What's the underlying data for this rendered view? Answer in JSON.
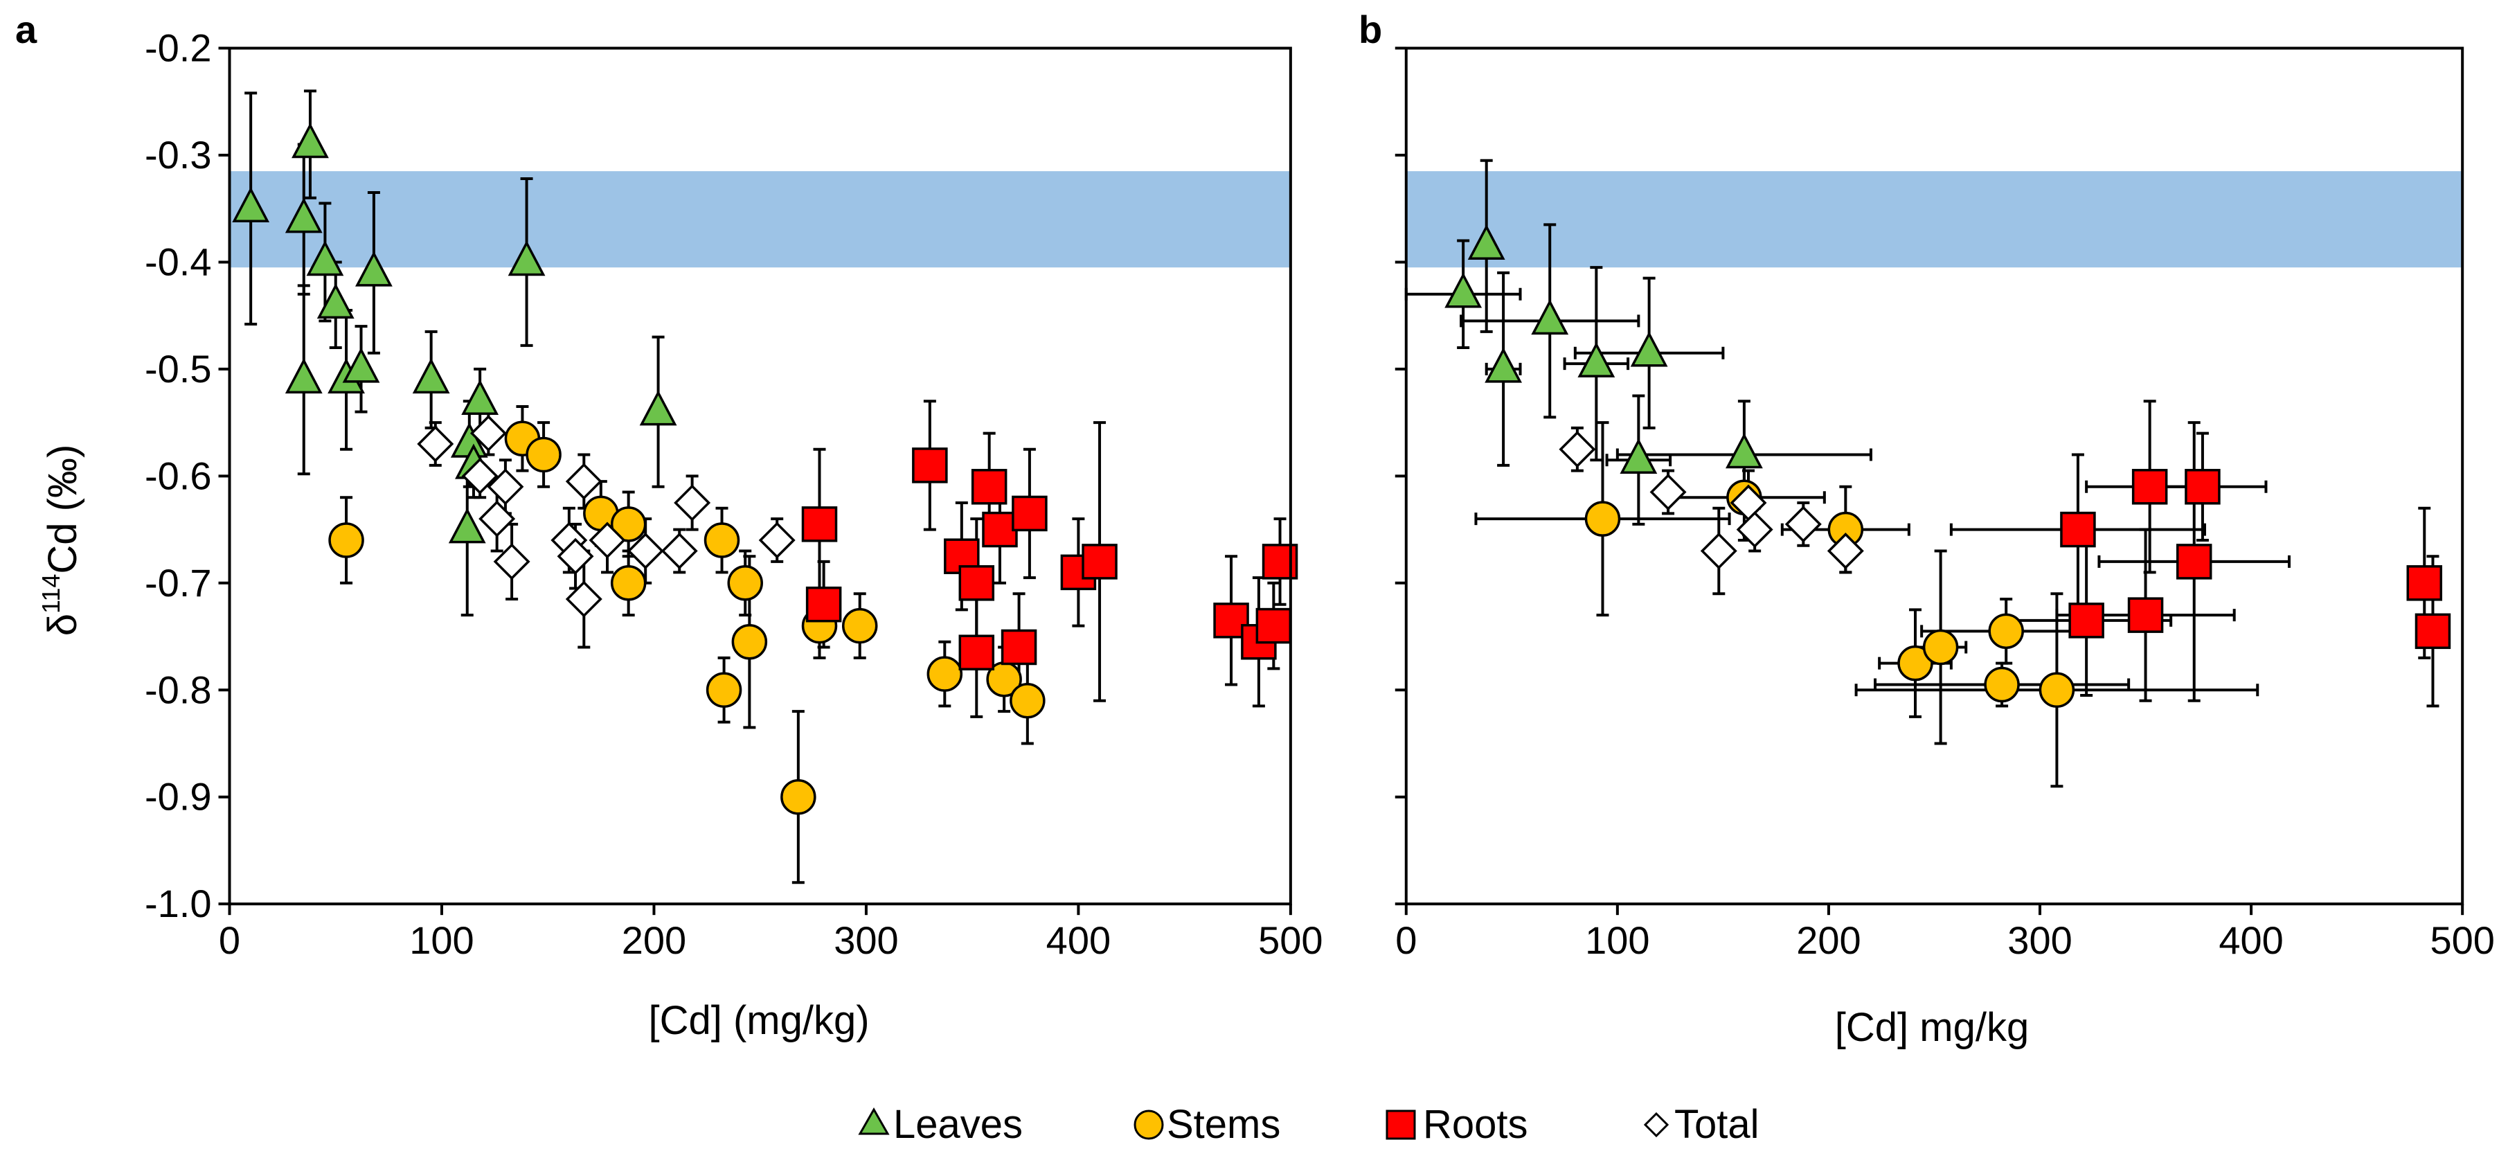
{
  "figure": {
    "legend": [
      {
        "label": "Leaves",
        "marker": "triangle",
        "fill": "#6CC24A"
      },
      {
        "label": "Stems",
        "marker": "circle",
        "fill": "#FFC000"
      },
      {
        "label": "Roots",
        "marker": "square",
        "fill": "#FF0000"
      },
      {
        "label": "Total",
        "marker": "diamond",
        "fill": "#FFFFFF"
      }
    ],
    "colors": {
      "band": "#9DC3E6",
      "leaves": "#6CC24A",
      "stems": "#FFC000",
      "roots": "#FF0000",
      "total": "#FFFFFF",
      "outline": "#000000"
    }
  },
  "chart_data": [
    {
      "panel": "a",
      "type": "scatter",
      "xlabel": "[Cd] (mg/kg)",
      "ylabel_prefix": "δ",
      "ylabel_sup": "114",
      "ylabel_suffix": "Cd  (‰)",
      "xlim": [
        0,
        500
      ],
      "ylim": [
        -1.0,
        -0.2
      ],
      "xticks": [
        0,
        100,
        200,
        300,
        400,
        500
      ],
      "xtick_labels": [
        "0",
        "100",
        "200",
        "300",
        "400",
        "500"
      ],
      "yticks": [
        -0.2,
        -0.3,
        -0.4,
        -0.5,
        -0.6,
        -0.7,
        -0.8,
        -0.9,
        -1.0
      ],
      "ytick_labels": [
        "-0.2",
        "-0.3",
        "-0.4",
        "-0.5",
        "-0.6",
        "-0.7",
        "-0.8",
        "-0.9",
        "-1.0"
      ],
      "band": [
        -0.405,
        -0.315
      ],
      "series": [
        {
          "name": "Leaves",
          "marker": "triangle",
          "points": [
            {
              "x": 10,
              "y": -0.35,
              "ey": 0.108
            },
            {
              "x": 38,
              "y": -0.29,
              "ey": 0.05
            },
            {
              "x": 35,
              "y": -0.36,
              "ey": 0.07
            },
            {
              "x": 45,
              "y": -0.4,
              "ey": 0.055
            },
            {
              "x": 68,
              "y": -0.41,
              "ey": 0.075
            },
            {
              "x": 50,
              "y": -0.44,
              "ey": 0.04
            },
            {
              "x": 35,
              "y": -0.51,
              "ey": 0.088
            },
            {
              "x": 55,
              "y": -0.51,
              "ey": 0.065
            },
            {
              "x": 62,
              "y": -0.5,
              "ey": 0.04
            },
            {
              "x": 140,
              "y": -0.4,
              "ey": 0.078
            },
            {
              "x": 95,
              "y": -0.51,
              "ey": 0.045
            },
            {
              "x": 118,
              "y": -0.53,
              "ey": 0.03
            },
            {
              "x": 113,
              "y": -0.57,
              "ey": 0.04
            },
            {
              "x": 115,
              "y": -0.59,
              "ey": 0.03
            },
            {
              "x": 112,
              "y": -0.65,
              "ey": 0.08
            },
            {
              "x": 202,
              "y": -0.54,
              "ey": 0.07
            }
          ]
        },
        {
          "name": "Stems",
          "marker": "circle",
          "points": [
            {
              "x": 55,
              "y": -0.66,
              "ey": 0.04
            },
            {
              "x": 138,
              "y": -0.565,
              "ey": 0.03
            },
            {
              "x": 148,
              "y": -0.58,
              "ey": 0.03
            },
            {
              "x": 175,
              "y": -0.635,
              "ey": 0.03
            },
            {
              "x": 188,
              "y": -0.645,
              "ey": 0.03
            },
            {
              "x": 188,
              "y": -0.7,
              "ey": 0.03
            },
            {
              "x": 232,
              "y": -0.66,
              "ey": 0.03
            },
            {
              "x": 243,
              "y": -0.7,
              "ey": 0.03
            },
            {
              "x": 245,
              "y": -0.755,
              "ey": 0.08
            },
            {
              "x": 233,
              "y": -0.8,
              "ey": 0.03
            },
            {
              "x": 268,
              "y": -0.9,
              "ey": 0.08
            },
            {
              "x": 278,
              "y": -0.74,
              "ey": 0.03
            },
            {
              "x": 297,
              "y": -0.74,
              "ey": 0.03
            },
            {
              "x": 337,
              "y": -0.785,
              "ey": 0.03
            },
            {
              "x": 365,
              "y": -0.79,
              "ey": 0.03
            },
            {
              "x": 376,
              "y": -0.81,
              "ey": 0.04
            }
          ]
        },
        {
          "name": "Roots",
          "marker": "square",
          "points": [
            {
              "x": 278,
              "y": -0.645,
              "ey": 0.07
            },
            {
              "x": 280,
              "y": -0.72,
              "ey": 0.04
            },
            {
              "x": 330,
              "y": -0.59,
              "ey": 0.06
            },
            {
              "x": 345,
              "y": -0.675,
              "ey": 0.05
            },
            {
              "x": 352,
              "y": -0.7,
              "ey": 0.06
            },
            {
              "x": 352,
              "y": -0.765,
              "ey": 0.06
            },
            {
              "x": 358,
              "y": -0.61,
              "ey": 0.05
            },
            {
              "x": 363,
              "y": -0.65,
              "ey": 0.05
            },
            {
              "x": 372,
              "y": -0.76,
              "ey": 0.05
            },
            {
              "x": 377,
              "y": -0.635,
              "ey": 0.06
            },
            {
              "x": 400,
              "y": -0.69,
              "ey": 0.05
            },
            {
              "x": 410,
              "y": -0.68,
              "ey": 0.13
            },
            {
              "x": 472,
              "y": -0.735,
              "ey": 0.06
            },
            {
              "x": 485,
              "y": -0.755,
              "ey": 0.06
            },
            {
              "x": 492,
              "y": -0.74,
              "ey": 0.04
            },
            {
              "x": 495,
              "y": -0.68,
              "ey": 0.04
            }
          ]
        },
        {
          "name": "Total",
          "marker": "diamond",
          "points": [
            {
              "x": 97,
              "y": -0.57,
              "ey": 0.02
            },
            {
              "x": 122,
              "y": -0.56,
              "ey": 0.02
            },
            {
              "x": 118,
              "y": -0.6,
              "ey": 0.02
            },
            {
              "x": 126,
              "y": -0.64,
              "ey": 0.03
            },
            {
              "x": 133,
              "y": -0.68,
              "ey": 0.035
            },
            {
              "x": 130,
              "y": -0.61,
              "ey": 0.025
            },
            {
              "x": 160,
              "y": -0.66,
              "ey": 0.03
            },
            {
              "x": 163,
              "y": -0.675,
              "ey": 0.03
            },
            {
              "x": 167,
              "y": -0.605,
              "ey": 0.025
            },
            {
              "x": 167,
              "y": -0.715,
              "ey": 0.045
            },
            {
              "x": 178,
              "y": -0.66,
              "ey": 0.03
            },
            {
              "x": 196,
              "y": -0.67,
              "ey": 0.03
            },
            {
              "x": 212,
              "y": -0.67,
              "ey": 0.02
            },
            {
              "x": 218,
              "y": -0.625,
              "ey": 0.025
            },
            {
              "x": 258,
              "y": -0.66,
              "ey": 0.02
            }
          ]
        }
      ]
    },
    {
      "panel": "b",
      "type": "scatter",
      "xlabel": "[Cd] mg/kg",
      "xlim": [
        0,
        500
      ],
      "ylim": [
        -1.0,
        -0.2
      ],
      "xticks": [
        0,
        100,
        200,
        300,
        400,
        500
      ],
      "xtick_labels": [
        "0",
        "100",
        "200",
        "300",
        "400",
        "500"
      ],
      "yticks": [
        -0.2,
        -0.3,
        -0.4,
        -0.5,
        -0.6,
        -0.7,
        -0.8,
        -0.9,
        -1.0
      ],
      "ytick_labels": [],
      "band": [
        -0.405,
        -0.315
      ],
      "series": [
        {
          "name": "Leaves",
          "marker": "triangle",
          "points": [
            {
              "x": 27,
              "y": -0.43,
              "ex": 27,
              "ey": 0.05
            },
            {
              "x": 38,
              "y": -0.385,
              "ex": 0,
              "ey": 0.08
            },
            {
              "x": 46,
              "y": -0.5,
              "ex": 8,
              "ey": 0.09
            },
            {
              "x": 68,
              "y": -0.455,
              "ex": 42,
              "ey": 0.09
            },
            {
              "x": 90,
              "y": -0.495,
              "ex": 15,
              "ey": 0.09
            },
            {
              "x": 115,
              "y": -0.485,
              "ex": 35,
              "ey": 0.07
            },
            {
              "x": 110,
              "y": -0.585,
              "ex": 15,
              "ey": 0.06
            },
            {
              "x": 160,
              "y": -0.58,
              "ex": 60,
              "ey": 0.05
            }
          ]
        },
        {
          "name": "Stems",
          "marker": "circle",
          "points": [
            {
              "x": 93,
              "y": -0.64,
              "ex": 60,
              "ey": 0.09
            },
            {
              "x": 160,
              "y": -0.62,
              "ex": 38,
              "ey": 0.04
            },
            {
              "x": 208,
              "y": -0.65,
              "ex": 30,
              "ey": 0.04
            },
            {
              "x": 241,
              "y": -0.775,
              "ex": 17,
              "ey": 0.05
            },
            {
              "x": 253,
              "y": -0.76,
              "ex": 12,
              "ey": 0.09
            },
            {
              "x": 284,
              "y": -0.745,
              "ex": 40,
              "ey": 0.03
            },
            {
              "x": 282,
              "y": -0.795,
              "ex": 60,
              "ey": 0.02
            },
            {
              "x": 308,
              "y": -0.8,
              "ex": 95,
              "ey": 0.09
            }
          ]
        },
        {
          "name": "Roots",
          "marker": "square",
          "points": [
            {
              "x": 318,
              "y": -0.65,
              "ex": 60,
              "ey": 0.07
            },
            {
              "x": 322,
              "y": -0.735,
              "ex": 40,
              "ey": 0.07
            },
            {
              "x": 350,
              "y": -0.73,
              "ex": 42,
              "ey": 0.08
            },
            {
              "x": 352,
              "y": -0.61,
              "ex": 30,
              "ey": 0.08
            },
            {
              "x": 373,
              "y": -0.68,
              "ex": 45,
              "ey": 0.13
            },
            {
              "x": 377,
              "y": -0.61,
              "ex": 30,
              "ey": 0.05
            },
            {
              "x": 482,
              "y": -0.7,
              "ex": 0,
              "ey": 0.07
            },
            {
              "x": 486,
              "y": -0.745,
              "ex": 0,
              "ey": 0.07
            }
          ]
        },
        {
          "name": "Total",
          "marker": "diamond",
          "points": [
            {
              "x": 81,
              "y": -0.575,
              "ex": 0,
              "ey": 0.02
            },
            {
              "x": 124,
              "y": -0.615,
              "ex": 0,
              "ey": 0.02
            },
            {
              "x": 148,
              "y": -0.67,
              "ex": 0,
              "ey": 0.04
            },
            {
              "x": 162,
              "y": -0.625,
              "ex": 0,
              "ey": 0.03
            },
            {
              "x": 165,
              "y": -0.65,
              "ex": 0,
              "ey": 0.02
            },
            {
              "x": 188,
              "y": -0.645,
              "ex": 0,
              "ey": 0.02
            },
            {
              "x": 208,
              "y": -0.67,
              "ex": 0,
              "ey": 0.02
            }
          ]
        }
      ]
    }
  ]
}
